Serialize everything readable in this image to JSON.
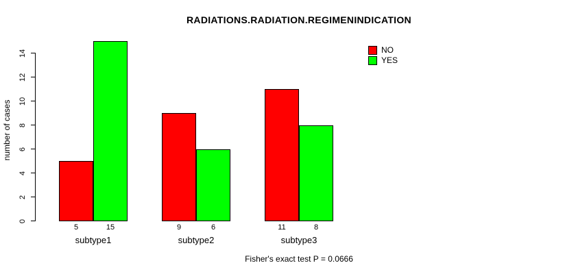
{
  "title": "RADIATIONS.RADIATION.REGIMENINDICATION",
  "caption": "Fisher's exact test P = 0.0666",
  "y_axis": {
    "label": "number of cases"
  },
  "legend": {
    "items": [
      {
        "label": "NO",
        "color": "#ff0000"
      },
      {
        "label": "YES",
        "color": "#00ff00"
      }
    ]
  },
  "chart_data": {
    "type": "bar",
    "title": "RADIATIONS.RADIATION.REGIMENINDICATION",
    "xlabel": "",
    "ylabel": "number of cases",
    "categories": [
      "subtype1",
      "subtype2",
      "subtype3"
    ],
    "series": [
      {
        "name": "NO",
        "color": "#ff0000",
        "values": [
          5,
          9,
          11
        ]
      },
      {
        "name": "YES",
        "color": "#00ff00",
        "values": [
          15,
          6,
          8
        ]
      }
    ],
    "bar_value_labels": [
      [
        "5",
        "15"
      ],
      [
        "9",
        "6"
      ],
      [
        "11",
        "8"
      ]
    ],
    "ylim": [
      0,
      15
    ],
    "yticks": [
      0,
      2,
      4,
      6,
      8,
      10,
      12,
      14
    ],
    "grid": false,
    "legend_position": "top-right",
    "annotation": "Fisher's exact test P = 0.0666"
  }
}
